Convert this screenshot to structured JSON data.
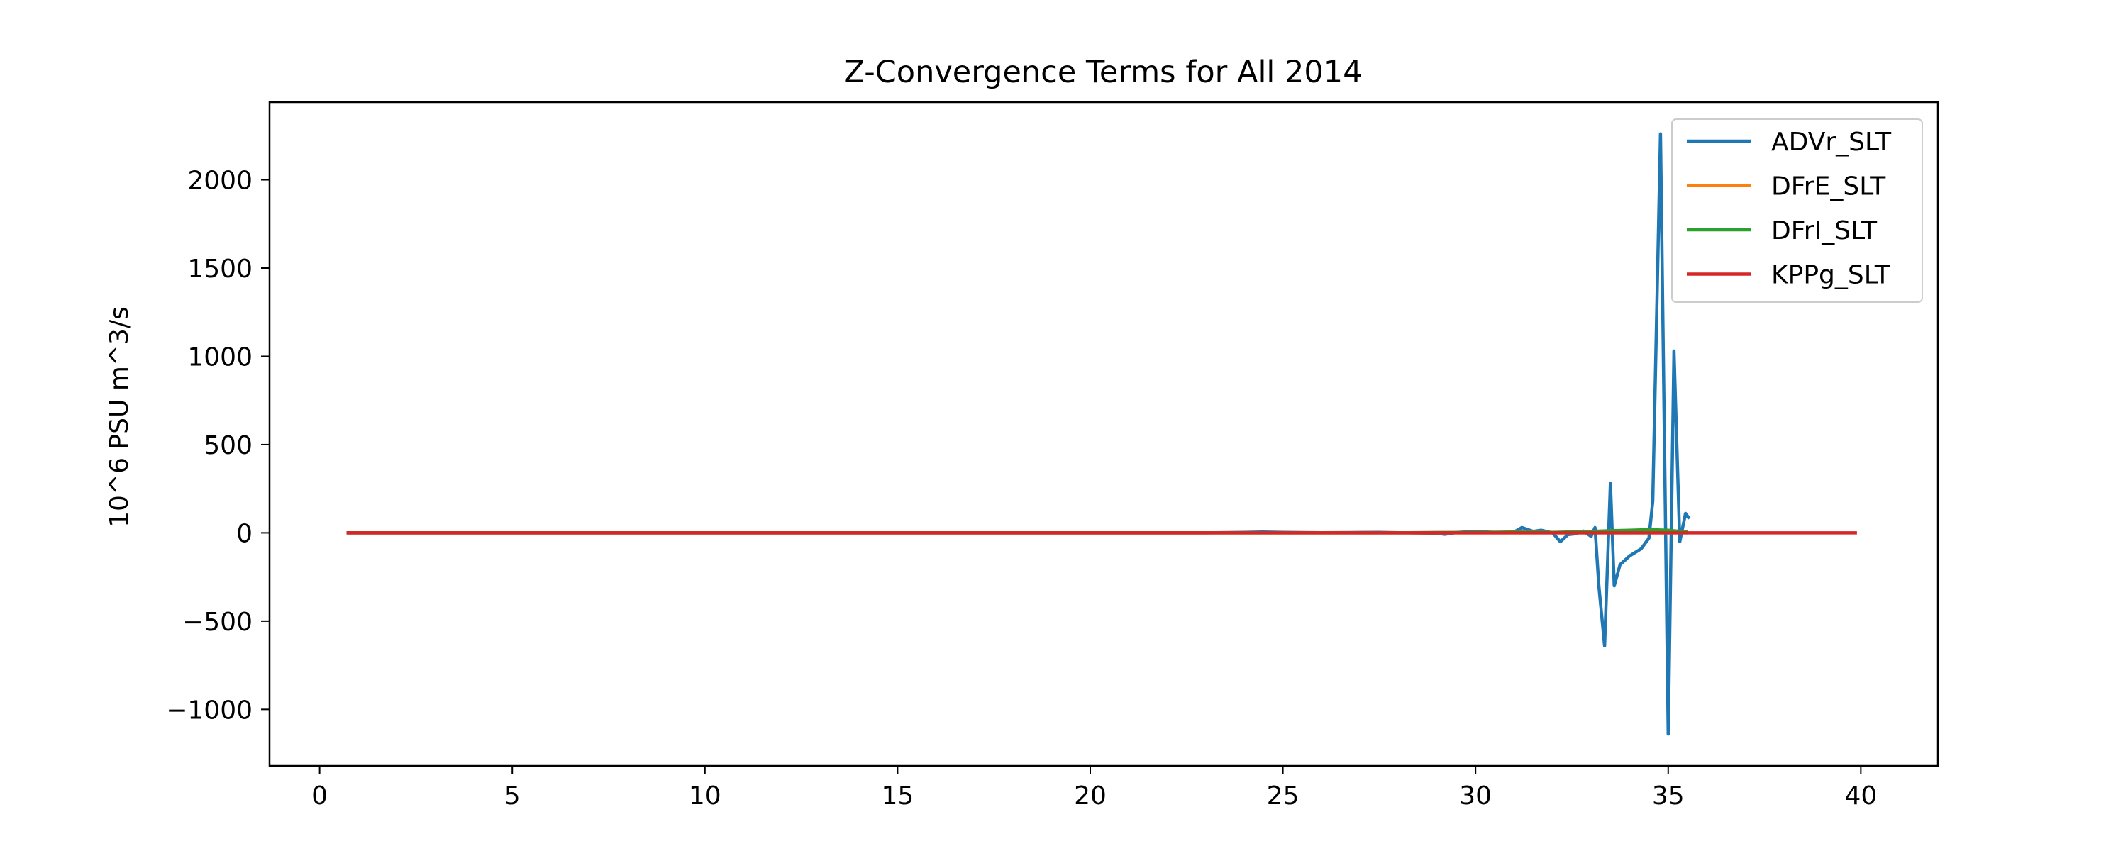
{
  "chart_data": {
    "type": "line",
    "title": "Z-Convergence Terms for All 2014",
    "xlabel": "",
    "ylabel": "10^6 PSU m^3/s",
    "xlim": [
      -1.3,
      42
    ],
    "ylim": [
      -1320,
      2440
    ],
    "xticks": [
      0,
      5,
      10,
      15,
      20,
      25,
      30,
      35,
      40
    ],
    "yticks": [
      -1000,
      -500,
      0,
      500,
      1000,
      1500,
      2000
    ],
    "xtick_labels": [
      "0",
      "5",
      "10",
      "15",
      "20",
      "25",
      "30",
      "35",
      "40"
    ],
    "ytick_labels": [
      "−1000",
      "−500",
      "0",
      "500",
      "1000",
      "1500",
      "2000"
    ],
    "grid": false,
    "legend_position": "top-right",
    "colors": {
      "ADVr_SLT": "#1f77b4",
      "DFrE_SLT": "#ff7f0e",
      "DFrI_SLT": "#2ca02c",
      "KPPg_SLT": "#d62728"
    },
    "series": [
      {
        "name": "ADVr_SLT",
        "x": [
          0.7,
          5,
          10,
          15,
          20,
          23,
          24,
          24.5,
          25,
          26,
          27,
          27.5,
          28,
          29,
          29.2,
          29.5,
          30,
          30.5,
          31,
          31.2,
          31.5,
          31.7,
          32,
          32.2,
          32.4,
          32.6,
          32.8,
          33,
          33.1,
          33.2,
          33.35,
          33.5,
          33.6,
          33.75,
          34,
          34.3,
          34.5,
          34.6,
          34.8,
          35,
          35.15,
          35.3,
          35.45,
          35.55
        ],
        "y": [
          0,
          0,
          0,
          0,
          0,
          0,
          3,
          5,
          3,
          1,
          2,
          3,
          1,
          -2,
          -8,
          2,
          8,
          2,
          5,
          30,
          8,
          15,
          0,
          -50,
          -10,
          -5,
          10,
          -20,
          30,
          -300,
          -640,
          280,
          -300,
          -180,
          -130,
          -90,
          -30,
          180,
          2260,
          -1140,
          1030,
          -50,
          110,
          80
        ]
      },
      {
        "name": "DFrE_SLT",
        "x": [
          0.7,
          10,
          20,
          30,
          33,
          34,
          35,
          35.5
        ],
        "y": [
          0,
          0,
          0,
          0,
          0,
          0,
          0,
          0
        ]
      },
      {
        "name": "DFrI_SLT",
        "x": [
          0.7,
          10,
          20,
          28,
          29,
          30,
          31,
          32,
          33,
          33.5,
          34,
          34.5,
          35,
          35.5
        ],
        "y": [
          0,
          0,
          0,
          0,
          2,
          3,
          5,
          3,
          8,
          12,
          15,
          18,
          15,
          5
        ]
      },
      {
        "name": "KPPg_SLT",
        "x": [
          0.7,
          5,
          10,
          15,
          20,
          25,
          30,
          35,
          39.9
        ],
        "y": [
          0,
          0,
          0,
          0,
          0,
          0,
          0,
          0,
          0
        ]
      }
    ]
  }
}
